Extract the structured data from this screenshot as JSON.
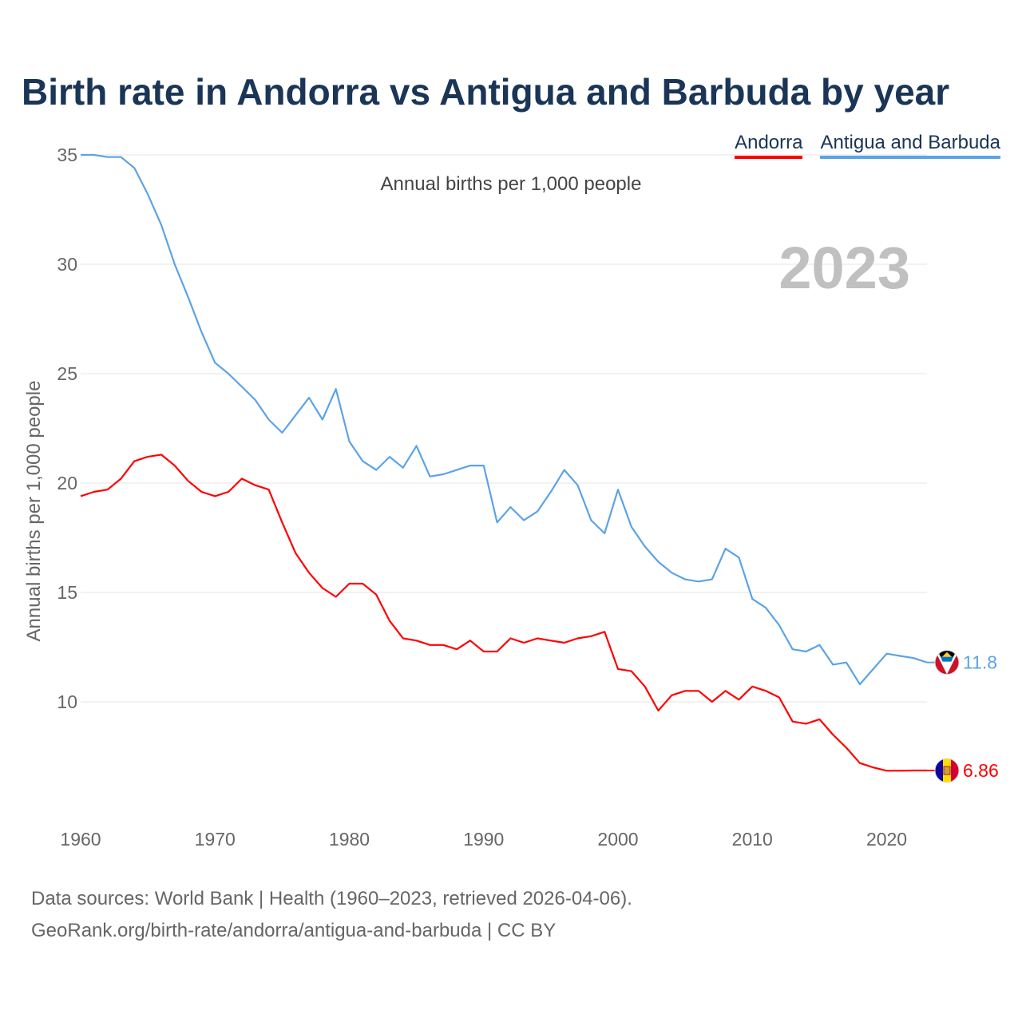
{
  "title": "Birth rate in Andorra vs Antigua and Barbuda by year",
  "subtitle": "Annual births per 1,000 people",
  "legend": [
    {
      "name": "Andorra",
      "color": "#ff0000"
    },
    {
      "name": "Antigua and Barbuda",
      "color": "#5ca3e6"
    }
  ],
  "year_watermark": "2023",
  "source": {
    "line1": "Data sources: World Bank | Health (1960–2023, retrieved 2026-04-06).",
    "line2": "GeoRank.org/birth-rate/andorra/antigua-and-barbuda | CC BY"
  },
  "chart_data": {
    "type": "line",
    "title": "Birth rate in Andorra vs Antigua and Barbuda by year",
    "xlabel": "",
    "ylabel": "Annual births per 1,000 people",
    "xlim": [
      1960,
      2023
    ],
    "ylim": [
      5,
      35
    ],
    "xticks": [
      1960,
      1970,
      1980,
      1990,
      2000,
      2010,
      2020
    ],
    "yticks": [
      10,
      15,
      20,
      25,
      30,
      35
    ],
    "grid": true,
    "legend_position": "top-right",
    "x": [
      1960,
      1961,
      1962,
      1963,
      1964,
      1965,
      1966,
      1967,
      1968,
      1969,
      1970,
      1971,
      1972,
      1973,
      1974,
      1975,
      1976,
      1977,
      1978,
      1979,
      1980,
      1981,
      1982,
      1983,
      1984,
      1985,
      1986,
      1987,
      1988,
      1989,
      1990,
      1991,
      1992,
      1993,
      1994,
      1995,
      1996,
      1997,
      1998,
      1999,
      2000,
      2001,
      2002,
      2003,
      2004,
      2005,
      2006,
      2007,
      2008,
      2009,
      2010,
      2011,
      2012,
      2013,
      2014,
      2015,
      2016,
      2017,
      2018,
      2019,
      2020,
      2021,
      2022,
      2023
    ],
    "series": [
      {
        "name": "Andorra",
        "color": "#ff0000",
        "end_label": "6.86",
        "values": [
          19.4,
          19.6,
          19.7,
          20.2,
          21.0,
          21.2,
          21.3,
          20.8,
          20.1,
          19.6,
          19.4,
          19.6,
          20.2,
          19.9,
          19.7,
          18.2,
          16.8,
          15.9,
          15.2,
          14.8,
          15.4,
          15.4,
          14.9,
          13.7,
          12.9,
          12.8,
          12.6,
          12.6,
          12.4,
          12.8,
          12.3,
          12.3,
          12.9,
          12.7,
          12.9,
          12.8,
          12.7,
          12.9,
          13.0,
          13.2,
          11.5,
          11.4,
          10.7,
          9.6,
          10.3,
          10.5,
          10.5,
          10.0,
          10.5,
          10.1,
          10.7,
          10.5,
          10.2,
          9.1,
          9.0,
          9.2,
          8.5,
          7.9,
          7.2,
          7.0,
          6.85,
          6.85,
          6.86,
          6.86
        ]
      },
      {
        "name": "Antigua and Barbuda",
        "color": "#5ca3e6",
        "end_label": "11.8",
        "values": [
          35.0,
          35.0,
          34.9,
          34.9,
          34.4,
          33.2,
          31.8,
          30.0,
          28.5,
          26.9,
          25.5,
          25.0,
          24.4,
          23.8,
          22.9,
          22.3,
          23.1,
          23.9,
          22.9,
          24.3,
          21.9,
          21.0,
          20.6,
          21.2,
          20.7,
          21.7,
          20.3,
          20.4,
          20.6,
          20.8,
          20.8,
          18.2,
          18.9,
          18.3,
          18.7,
          19.6,
          20.6,
          19.9,
          18.3,
          17.7,
          19.7,
          18.0,
          17.1,
          16.4,
          15.9,
          15.6,
          15.5,
          15.6,
          17.0,
          16.6,
          14.7,
          14.3,
          13.5,
          12.4,
          12.3,
          12.6,
          11.7,
          11.8,
          10.8,
          11.5,
          12.2,
          12.1,
          12.0,
          11.8
        ]
      }
    ]
  }
}
